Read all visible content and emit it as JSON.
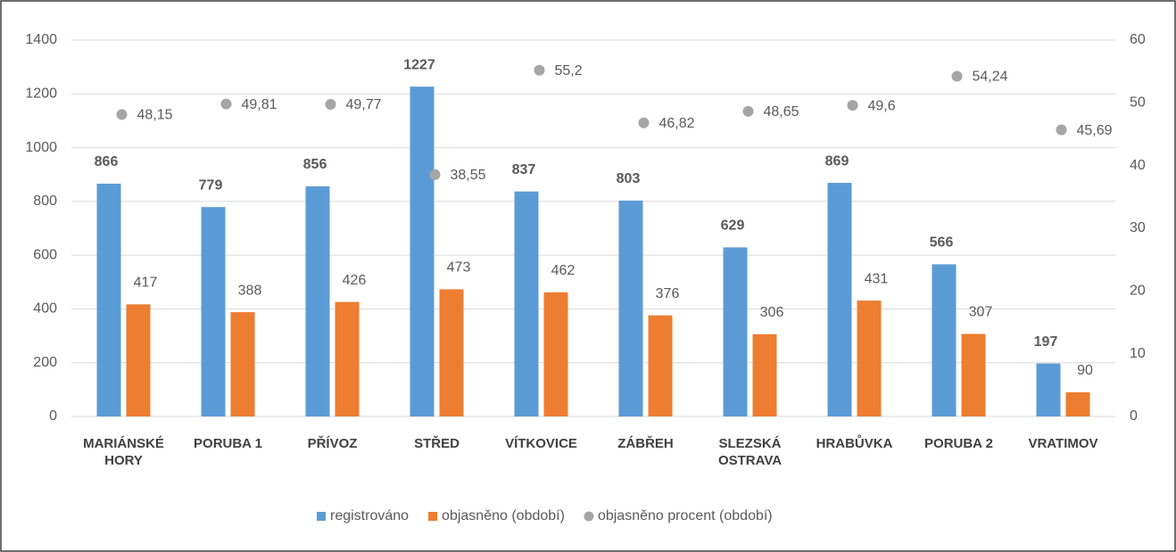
{
  "chart_data": {
    "type": "bar",
    "categories": [
      "MARIÁNSKÉ HORY",
      "PORUBA 1",
      "PŘÍVOZ",
      "STŘED",
      "VÍTKOVICE",
      "ZÁBŘEH",
      "SLEZSKÁ OSTRAVA",
      "HRABŮVKA",
      "PORUBA 2",
      "VRATIMOV"
    ],
    "series": [
      {
        "name": "registrováno",
        "color": "#5b9bd5",
        "values": [
          866,
          779,
          856,
          1227,
          837,
          803,
          629,
          869,
          566,
          197
        ]
      },
      {
        "name": "objasněno (období)",
        "color": "#ed7d31",
        "values": [
          417,
          388,
          426,
          473,
          462,
          376,
          306,
          431,
          307,
          90
        ]
      },
      {
        "name": "objasněno procent (období)",
        "color": "#a5a5a5",
        "label_color": "#e8202a",
        "axis": "y2",
        "values": [
          48.15,
          49.81,
          49.77,
          38.55,
          55.2,
          46.82,
          48.65,
          49.6,
          54.24,
          45.69
        ],
        "value_labels": [
          "48,15",
          "49,81",
          "49,77",
          "38,55",
          "55,2",
          "46,82",
          "48,65",
          "49,6",
          "54,24",
          "45,69"
        ]
      }
    ],
    "ylim": [
      0,
      1400
    ],
    "yticks": [
      0,
      200,
      400,
      600,
      800,
      1000,
      1200,
      1400
    ],
    "y2lim": [
      0,
      60
    ],
    "y2ticks": [
      0,
      10,
      20,
      30,
      40,
      50,
      60
    ],
    "grid": true,
    "legend": "bottom"
  }
}
